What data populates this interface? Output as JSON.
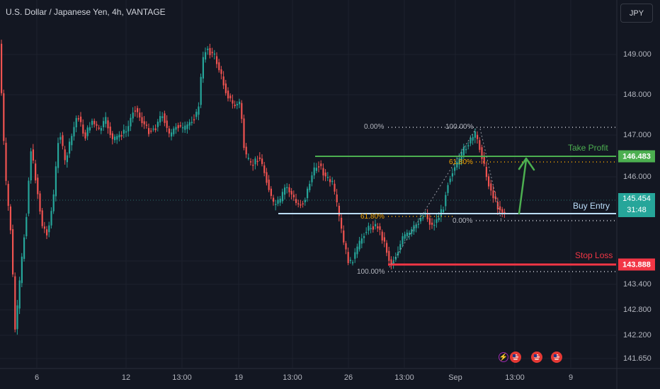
{
  "header": {
    "symbol_title": "U.S. Dollar / Japanese Yen, 4h, VANTAGE",
    "currency_button": "JPY"
  },
  "price_axis": [
    "149.000",
    "148.000",
    "147.000",
    "146.000",
    "143.400",
    "142.800",
    "142.200",
    "141.650"
  ],
  "price_tags": {
    "take_profit": "146.483",
    "current_price": "145.454",
    "countdown": "31:48",
    "stop_loss": "143.888"
  },
  "time_axis": [
    "6",
    "12",
    "13:00",
    "19",
    "13:00",
    "26",
    "13:00",
    "Sep",
    "13:00",
    "9"
  ],
  "annotations": {
    "take_profit_label": "Take Profit",
    "buy_entry_label": "Buy Entry",
    "stop_loss_label": "Stop Loss"
  },
  "fibonacci": {
    "right": {
      "top_label": "0.00%",
      "top_right_label": "100.00%",
      "mid_label": "61.80%",
      "bottom_label": "0.00%"
    },
    "left": {
      "mid_label": "61.80%",
      "bottom_label": "100.00%"
    }
  },
  "colors": {
    "up": "#26a69a",
    "down": "#ef5350",
    "take_profit": "#4caf50",
    "stop_loss": "#f23645",
    "buy_entry": "#bbdefb",
    "fib_level": "#f7a600"
  },
  "events": [
    "flash-icon",
    "us-flag-icon",
    "us-flag-icon",
    "us-flag-icon"
  ]
}
